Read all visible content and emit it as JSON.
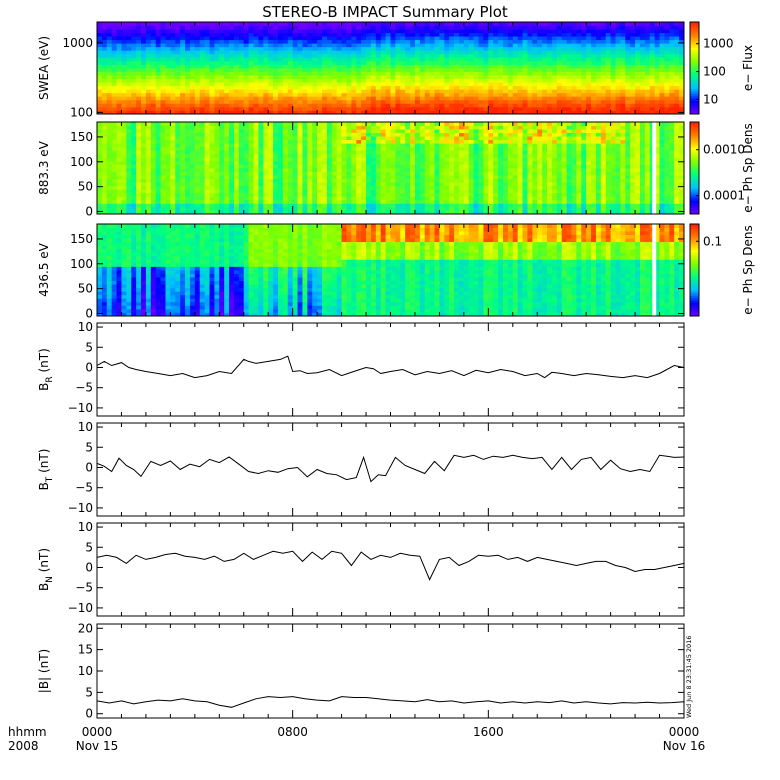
{
  "title": "STEREO-B IMPACT Summary Plot",
  "stamp": "Wed Jun  8 23:31:45 2016",
  "time_axis": {
    "label_line1": "hhmm",
    "label_line2": "2008",
    "ticks": [
      {
        "hour": 0,
        "label": "0000",
        "date": "Nov 15"
      },
      {
        "hour": 8,
        "label": "0800",
        "date": ""
      },
      {
        "hour": 16,
        "label": "1600",
        "date": ""
      },
      {
        "hour": 24,
        "label": "0000",
        "date": "Nov 16"
      }
    ]
  },
  "chart_data": [
    {
      "type": "heatmap",
      "id": "swea",
      "ylabel": "SWEA (eV)",
      "y_scale": "log",
      "ylim": [
        95,
        2000
      ],
      "yticks": [
        {
          "v": 100,
          "label": "100"
        },
        {
          "v": 1000,
          "label": "1000"
        }
      ],
      "colorbar": {
        "label": "e− Flux",
        "scale": "log",
        "range": [
          3,
          6000
        ],
        "ticks": [
          {
            "v": 10,
            "label": "10"
          },
          {
            "v": 100,
            "label": "100"
          },
          {
            "v": 1000,
            "label": "1000"
          }
        ]
      },
      "colors": [
        "#7000ff",
        "#0000ff",
        "#00c0ff",
        "#00ff80",
        "#80ff00",
        "#ffff00",
        "#ff8000",
        "#ff2000"
      ]
    },
    {
      "type": "heatmap",
      "id": "pad883",
      "ylabel": "883.3 eV",
      "ylim": [
        -5,
        180
      ],
      "yticks": [
        {
          "v": 0,
          "label": "0"
        },
        {
          "v": 50,
          "label": "50"
        },
        {
          "v": 100,
          "label": "100"
        },
        {
          "v": 150,
          "label": "150"
        }
      ],
      "colorbar": {
        "label": "e− Ph Sp Dens",
        "scale": "log",
        "range": [
          4e-05,
          0.004
        ],
        "ticks": [
          {
            "v": 0.0001,
            "label": "0.0001"
          },
          {
            "v": 0.001,
            "label": "0.0010"
          }
        ]
      },
      "colors": [
        "#7000ff",
        "#0000ff",
        "#00c0ff",
        "#00ff80",
        "#80ff00",
        "#ffff00",
        "#ff8000",
        "#ff2000"
      ]
    },
    {
      "type": "heatmap",
      "id": "pad436",
      "ylabel": "436.5 eV",
      "ylim": [
        -5,
        180
      ],
      "yticks": [
        {
          "v": 0,
          "label": "0"
        },
        {
          "v": 50,
          "label": "50"
        },
        {
          "v": 100,
          "label": "100"
        },
        {
          "v": 150,
          "label": "150"
        }
      ],
      "colorbar": {
        "label": "e− Ph Sp Dens",
        "scale": "log",
        "range": [
          0.005,
          0.2
        ],
        "ticks": [
          {
            "v": 0.1,
            "label": "0.1"
          }
        ]
      },
      "colors": [
        "#7000ff",
        "#0000ff",
        "#00c0ff",
        "#00ff80",
        "#80ff00",
        "#ffff00",
        "#ff8000",
        "#ff2000"
      ]
    },
    {
      "type": "line",
      "id": "br",
      "ylabel": "B",
      "ylabel_sub": "R",
      "ylabel_unit": " (nT)",
      "ylim": [
        -12,
        11
      ],
      "yticks": [
        {
          "v": -10,
          "label": "−10"
        },
        {
          "v": -5,
          "label": "−5"
        },
        {
          "v": 0,
          "label": "0"
        },
        {
          "v": 5,
          "label": "5"
        },
        {
          "v": 10,
          "label": "10"
        }
      ],
      "x": [
        0,
        0.3,
        0.6,
        1,
        1.3,
        1.6,
        2,
        2.5,
        3,
        3.5,
        4,
        4.5,
        5,
        5.5,
        6,
        6.2,
        6.5,
        7,
        7.5,
        7.8,
        8,
        8.3,
        8.6,
        9,
        9.5,
        10,
        10.5,
        11,
        11.3,
        11.6,
        12,
        12.5,
        13,
        13.5,
        14,
        14.5,
        15,
        15.5,
        16,
        16.5,
        17,
        17.5,
        18,
        18.3,
        18.6,
        19,
        19.5,
        20,
        20.5,
        21,
        21.5,
        22,
        22.5,
        23,
        23.3,
        23.6,
        24
      ],
      "y": [
        0.5,
        1.5,
        0.5,
        1.2,
        0,
        -0.5,
        -1,
        -1.5,
        -2,
        -1.5,
        -2.5,
        -2,
        -1,
        -1.5,
        2,
        1.5,
        1,
        1.5,
        2,
        2.8,
        -1,
        -0.8,
        -1.5,
        -1.3,
        -0.5,
        -2,
        -1,
        0,
        -0.3,
        -1.5,
        -1,
        -0.5,
        -1.8,
        -1,
        -1.5,
        -0.8,
        -2,
        -0.7,
        -1.3,
        -0.5,
        -1,
        -2,
        -1.5,
        -2.5,
        -1.2,
        -1.5,
        -2,
        -1.5,
        -1.8,
        -2.2,
        -2.5,
        -2,
        -2.5,
        -1.5,
        -0.5,
        0.5,
        0
      ]
    },
    {
      "type": "line",
      "id": "bt",
      "ylabel": "B",
      "ylabel_sub": "T",
      "ylabel_unit": " (nT)",
      "ylim": [
        -12,
        11
      ],
      "yticks": [
        {
          "v": -10,
          "label": "−10"
        },
        {
          "v": -5,
          "label": "−5"
        },
        {
          "v": 0,
          "label": "0"
        },
        {
          "v": 5,
          "label": "5"
        },
        {
          "v": 10,
          "label": "10"
        }
      ],
      "x": [
        0,
        0.3,
        0.6,
        0.9,
        1.2,
        1.5,
        1.8,
        2.2,
        2.6,
        3,
        3.4,
        3.8,
        4.2,
        4.6,
        5,
        5.4,
        5.8,
        6.2,
        6.6,
        7,
        7.4,
        7.8,
        8.2,
        8.6,
        9,
        9.4,
        9.8,
        10.2,
        10.6,
        10.9,
        11.2,
        11.5,
        11.8,
        12.2,
        12.6,
        13,
        13.4,
        13.8,
        14.2,
        14.6,
        15,
        15.4,
        15.8,
        16.2,
        16.6,
        17,
        17.4,
        17.8,
        18.2,
        18.6,
        19,
        19.4,
        19.8,
        20.2,
        20.6,
        21,
        21.4,
        21.8,
        22.2,
        22.6,
        23,
        23.3,
        23.6,
        24
      ],
      "y": [
        1,
        0.3,
        -1,
        2.3,
        0.5,
        -0.5,
        -2.2,
        1.5,
        0.5,
        1.6,
        -0.5,
        0.8,
        0.2,
        2,
        1.2,
        2.6,
        0.8,
        -1,
        -1.5,
        -0.8,
        -1.2,
        -0.3,
        0,
        -2.3,
        -0.5,
        -1.5,
        -1.8,
        -3,
        -2.5,
        2.5,
        -3.5,
        -1.8,
        -2,
        2.5,
        0.5,
        -0.5,
        -1.5,
        1.5,
        -0.8,
        3,
        2.5,
        3,
        2,
        2.8,
        2.5,
        3,
        2.5,
        2.2,
        2.5,
        -0.5,
        2.5,
        -0.5,
        2,
        2.5,
        -0.5,
        1.8,
        -0.3,
        -1,
        -0.5,
        -1,
        3,
        2.8,
        2.5,
        2.6
      ]
    },
    {
      "type": "line",
      "id": "bn",
      "ylabel": "B",
      "ylabel_sub": "N",
      "ylabel_unit": " (nT)",
      "ylim": [
        -12,
        11
      ],
      "yticks": [
        {
          "v": -10,
          "label": "−10"
        },
        {
          "v": -5,
          "label": "−5"
        },
        {
          "v": 0,
          "label": "0"
        },
        {
          "v": 5,
          "label": "5"
        },
        {
          "v": 10,
          "label": "10"
        }
      ],
      "x": [
        0,
        0.4,
        0.8,
        1.2,
        1.6,
        2,
        2.4,
        2.8,
        3.2,
        3.6,
        4,
        4.4,
        4.8,
        5.2,
        5.6,
        6,
        6.4,
        6.8,
        7.2,
        7.6,
        8,
        8.4,
        8.8,
        9.2,
        9.6,
        10,
        10.4,
        10.8,
        11.2,
        11.6,
        12,
        12.4,
        12.8,
        13.2,
        13.6,
        14,
        14.4,
        14.8,
        15.2,
        15.6,
        16,
        16.4,
        16.8,
        17.2,
        17.6,
        18,
        18.4,
        18.8,
        19.2,
        19.6,
        20,
        20.4,
        20.8,
        21.2,
        21.6,
        22,
        22.4,
        22.8,
        23.2,
        23.6,
        24
      ],
      "y": [
        2.5,
        3,
        2.5,
        1,
        3,
        2,
        2.5,
        3.2,
        3.5,
        2.8,
        2.5,
        2,
        2.8,
        1.5,
        2,
        3.5,
        2,
        3,
        4,
        3.5,
        4,
        1.5,
        3.8,
        2,
        4,
        3.5,
        0.5,
        3.8,
        2,
        3,
        2.5,
        3.5,
        3,
        2.8,
        -3,
        2,
        2.5,
        0.5,
        1.5,
        3,
        2.8,
        3,
        2,
        2.5,
        1.5,
        2.5,
        2,
        1.5,
        1,
        0.5,
        1,
        1.5,
        1.5,
        0.5,
        0,
        -1,
        -0.5,
        -0.5,
        0,
        0.5,
        1
      ]
    },
    {
      "type": "line",
      "id": "bmag",
      "ylabel": "|B| (nT)",
      "ylim": [
        -1,
        21
      ],
      "yticks": [
        {
          "v": 0,
          "label": "0"
        },
        {
          "v": 5,
          "label": "5"
        },
        {
          "v": 10,
          "label": "10"
        },
        {
          "v": 15,
          "label": "15"
        },
        {
          "v": 20,
          "label": "20"
        }
      ],
      "x": [
        0,
        0.5,
        1,
        1.5,
        2,
        2.5,
        3,
        3.5,
        4,
        4.5,
        5,
        5.5,
        6,
        6.5,
        7,
        7.5,
        8,
        8.5,
        9,
        9.5,
        10,
        10.5,
        11,
        11.5,
        12,
        12.5,
        13,
        13.5,
        14,
        14.5,
        15,
        15.5,
        16,
        16.5,
        17,
        17.5,
        18,
        18.5,
        19,
        19.5,
        20,
        20.5,
        21,
        21.5,
        22,
        22.5,
        23,
        23.5,
        24
      ],
      "y": [
        3,
        2.5,
        3,
        2.3,
        2.8,
        3.2,
        3,
        3.5,
        3,
        2.8,
        2,
        1.5,
        2.5,
        3.5,
        4,
        3.8,
        4,
        3.5,
        3.2,
        3,
        4,
        3.8,
        3.8,
        3.5,
        3.2,
        3,
        2.8,
        3.3,
        2.8,
        3,
        2.5,
        2.8,
        3,
        2.5,
        2.8,
        2.5,
        2.8,
        2.6,
        3,
        2.5,
        2.8,
        2.5,
        2.3,
        2.6,
        2.5,
        2.7,
        2.5,
        2.6,
        2.8
      ]
    }
  ]
}
